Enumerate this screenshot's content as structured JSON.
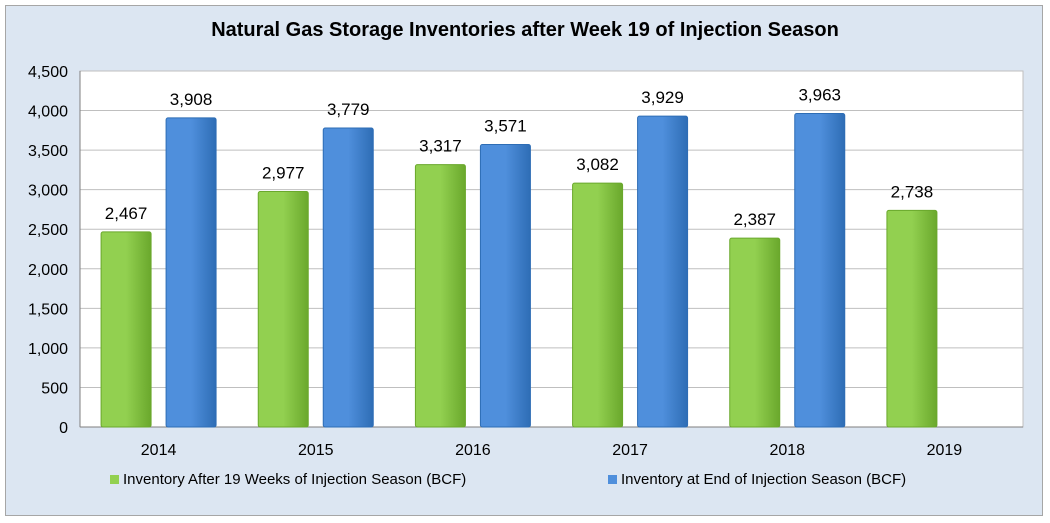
{
  "colors": {
    "series1": "#92d050",
    "series1_dark": "#6aa82c",
    "series2": "#4f8fdc",
    "series2_dark": "#2e6db5"
  },
  "chart_data": {
    "type": "bar",
    "title": "Natural Gas Storage Inventories after Week 19 of Injection Season",
    "categories": [
      "2014",
      "2015",
      "2016",
      "2017",
      "2018",
      "2019"
    ],
    "series": [
      {
        "name": "Inventory After 19 Weeks of Injection Season (BCF)",
        "values": [
          2467,
          2977,
          3317,
          3082,
          2387,
          2738
        ],
        "labels": [
          "2,467",
          "2,977",
          "3,317",
          "3,082",
          "2,387",
          "2,738"
        ]
      },
      {
        "name": "Inventory at End of Injection Season (BCF)",
        "values": [
          3908,
          3779,
          3571,
          3929,
          3963,
          null
        ],
        "labels": [
          "3,908",
          "3,779",
          "3,571",
          "3,929",
          "3,963",
          ""
        ]
      }
    ],
    "ylim": [
      0,
      4500
    ],
    "yticks": [
      0,
      500,
      1000,
      1500,
      2000,
      2500,
      3000,
      3500,
      4000,
      4500
    ],
    "ytick_labels": [
      "0",
      "500",
      "1,000",
      "1,500",
      "2,000",
      "2,500",
      "3,000",
      "3,500",
      "4,000",
      "4,500"
    ],
    "grid": true,
    "legend": "bottom"
  }
}
